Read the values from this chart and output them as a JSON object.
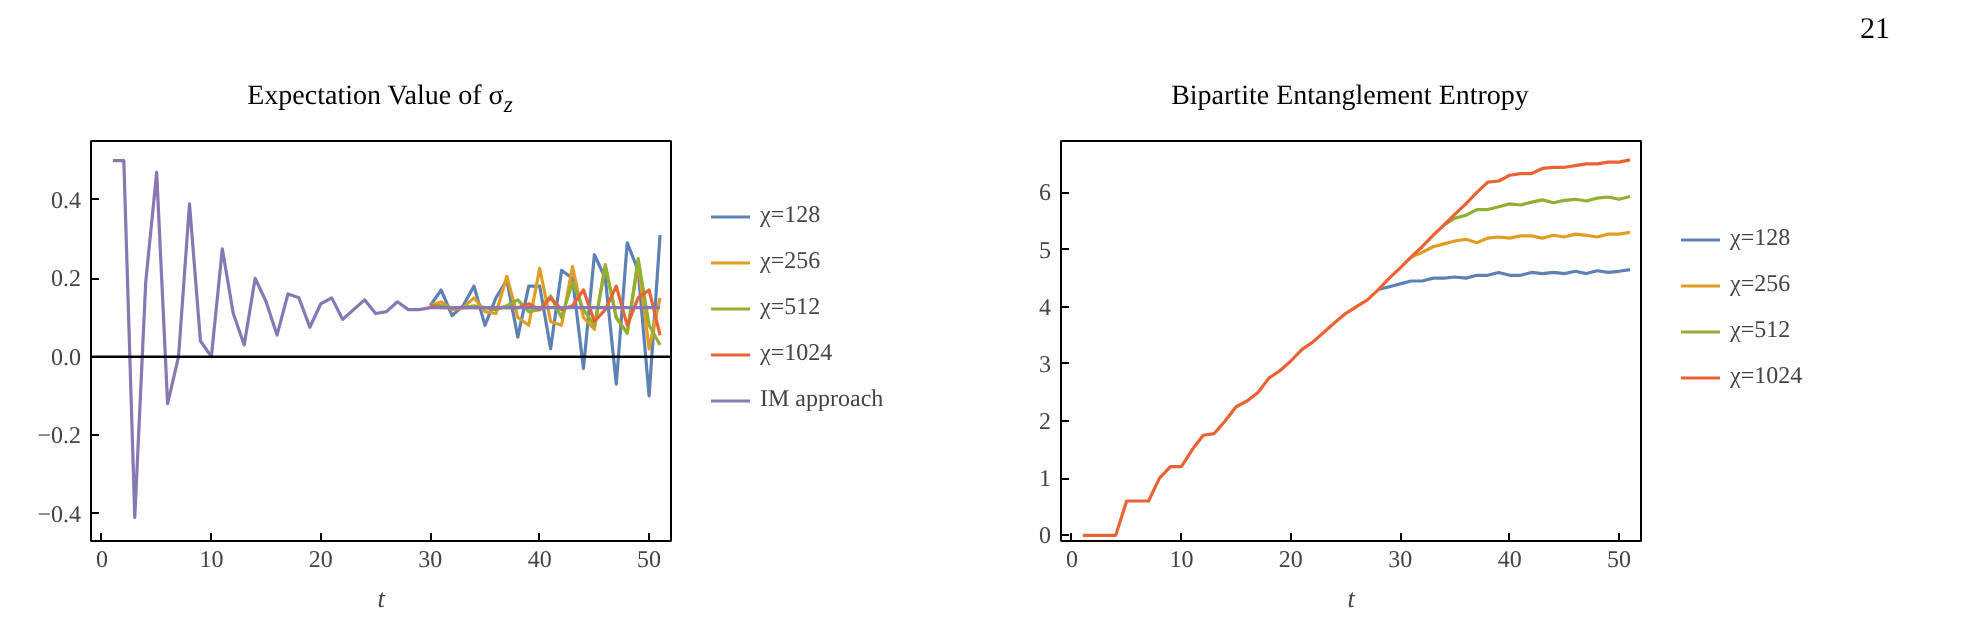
{
  "chart_data": [
    {
      "type": "line",
      "title": "Expectation Value of σ$_{z}$",
      "xlabel": "t",
      "x": [
        1,
        2,
        3,
        4,
        5,
        6,
        7,
        8,
        9,
        10,
        11,
        12,
        13,
        14,
        15,
        16,
        17,
        18,
        19,
        20,
        21,
        22,
        23,
        24,
        25,
        26,
        27,
        28,
        29,
        30,
        31,
        32,
        33,
        34,
        35,
        36,
        37,
        38,
        39,
        40,
        41,
        42,
        43,
        44,
        45,
        46,
        47,
        48,
        49,
        50,
        51
      ],
      "xlim": [
        -1,
        52
      ],
      "ylim": [
        -0.47,
        0.55
      ],
      "xticks": [
        0,
        10,
        20,
        30,
        40,
        50
      ],
      "yticks": [
        -0.4,
        -0.2,
        {
          "value": 0,
          "label": "0.0"
        },
        0.2,
        0.4
      ],
      "grid": false,
      "legend": "right",
      "ref_lines": [
        {
          "axis": "y",
          "value": 0,
          "color": "#000000"
        }
      ],
      "series": [
        {
          "name": "χ=128",
          "color": "#5e81b5",
          "values": [
            null,
            null,
            null,
            null,
            null,
            null,
            null,
            null,
            null,
            null,
            null,
            null,
            null,
            null,
            null,
            null,
            null,
            null,
            null,
            null,
            null,
            null,
            null,
            null,
            null,
            null,
            null,
            null,
            null,
            0.13,
            0.17,
            0.105,
            0.13,
            0.18,
            0.08,
            0.15,
            0.195,
            0.05,
            0.18,
            0.18,
            0.02,
            0.22,
            0.2,
            -0.03,
            0.26,
            0.2,
            -0.07,
            0.29,
            0.22,
            -0.1,
            0.31
          ]
        },
        {
          "name": "χ=256",
          "color": "#e19c24",
          "values": [
            null,
            null,
            null,
            null,
            null,
            null,
            null,
            null,
            null,
            null,
            null,
            null,
            null,
            null,
            null,
            null,
            null,
            null,
            null,
            null,
            null,
            null,
            null,
            null,
            null,
            null,
            null,
            null,
            null,
            0.13,
            0.14,
            0.12,
            0.125,
            0.15,
            0.115,
            0.11,
            0.205,
            0.1,
            0.08,
            0.225,
            0.09,
            0.08,
            0.23,
            0.1,
            0.07,
            0.235,
            0.1,
            0.06,
            0.24,
            0.02,
            0.15
          ]
        },
        {
          "name": "χ=512",
          "color": "#8fb032",
          "values": [
            null,
            null,
            null,
            null,
            null,
            null,
            null,
            null,
            null,
            null,
            null,
            null,
            null,
            null,
            null,
            null,
            null,
            null,
            null,
            null,
            null,
            null,
            null,
            null,
            null,
            null,
            null,
            null,
            null,
            0.13,
            0.13,
            0.125,
            0.125,
            0.13,
            0.125,
            0.12,
            0.13,
            0.145,
            0.115,
            0.12,
            0.155,
            0.1,
            0.19,
            0.12,
            0.08,
            0.23,
            0.1,
            0.06,
            0.25,
            0.08,
            0.03
          ]
        },
        {
          "name": "χ=1024",
          "color": "#eb6235",
          "values": [
            null,
            null,
            null,
            null,
            null,
            null,
            null,
            null,
            null,
            null,
            null,
            null,
            null,
            null,
            null,
            null,
            null,
            null,
            null,
            null,
            null,
            null,
            null,
            null,
            null,
            null,
            null,
            null,
            null,
            0.13,
            0.125,
            0.125,
            0.125,
            0.125,
            0.125,
            0.125,
            0.125,
            0.125,
            0.135,
            0.12,
            0.15,
            0.12,
            0.13,
            0.17,
            0.09,
            0.12,
            0.18,
            0.08,
            0.15,
            0.17,
            0.055
          ]
        },
        {
          "name": "IM approach",
          "color": "#8778b3",
          "values": [
            0.5,
            0.5,
            -0.41,
            0.19,
            0.47,
            -0.12,
            0.0,
            0.39,
            0.04,
            0.0,
            0.275,
            0.11,
            0.03,
            0.2,
            0.14,
            0.055,
            0.16,
            0.15,
            0.075,
            0.135,
            0.15,
            0.095,
            0.12,
            0.145,
            0.11,
            0.115,
            0.14,
            0.12,
            0.12,
            0.125,
            0.125,
            0.125,
            0.125,
            0.125,
            0.125,
            0.125,
            0.125,
            0.125,
            0.125,
            0.125,
            0.125,
            0.125,
            0.125,
            0.125,
            0.125,
            0.125,
            0.125,
            0.125,
            0.125,
            0.125,
            0.125
          ]
        }
      ]
    },
    {
      "type": "line",
      "title": "Bipartite Entanglement Entropy",
      "xlabel": "t",
      "annotations": [
        "21"
      ],
      "x": [
        1,
        2,
        3,
        4,
        5,
        6,
        7,
        8,
        9,
        10,
        11,
        12,
        13,
        14,
        15,
        16,
        17,
        18,
        19,
        20,
        21,
        22,
        23,
        24,
        25,
        26,
        27,
        28,
        29,
        30,
        31,
        32,
        33,
        34,
        35,
        36,
        37,
        38,
        39,
        40,
        41,
        42,
        43,
        44,
        45,
        46,
        47,
        48,
        49,
        50,
        51
      ],
      "xlim": [
        -1,
        52
      ],
      "ylim": [
        -0.1,
        6.9
      ],
      "xticks": [
        0,
        10,
        20,
        30,
        40,
        50
      ],
      "yticks": [
        0,
        1,
        2,
        3,
        4,
        5,
        6
      ],
      "grid": false,
      "legend": "right",
      "series": [
        {
          "name": "χ=128",
          "color": "#5e81b5",
          "values": [
            null,
            null,
            null,
            null,
            null,
            null,
            null,
            null,
            null,
            null,
            null,
            null,
            null,
            null,
            null,
            null,
            null,
            null,
            null,
            null,
            null,
            null,
            null,
            null,
            null,
            null,
            null,
            4.3,
            4.35,
            4.4,
            4.45,
            4.45,
            4.5,
            4.5,
            4.52,
            4.5,
            4.55,
            4.55,
            4.6,
            4.55,
            4.55,
            4.6,
            4.58,
            4.6,
            4.58,
            4.62,
            4.58,
            4.63,
            4.6,
            4.62,
            4.65
          ]
        },
        {
          "name": "χ=256",
          "color": "#e19c24",
          "values": [
            null,
            null,
            null,
            null,
            null,
            null,
            null,
            null,
            null,
            null,
            null,
            null,
            null,
            null,
            null,
            null,
            null,
            null,
            null,
            null,
            null,
            null,
            null,
            null,
            null,
            null,
            null,
            null,
            null,
            null,
            4.87,
            4.95,
            5.05,
            5.1,
            5.15,
            5.18,
            5.12,
            5.2,
            5.22,
            5.2,
            5.24,
            5.24,
            5.2,
            5.25,
            5.22,
            5.27,
            5.25,
            5.22,
            5.27,
            5.27,
            5.3
          ]
        },
        {
          "name": "χ=512",
          "color": "#8fb032",
          "values": [
            null,
            null,
            null,
            null,
            null,
            null,
            null,
            null,
            null,
            null,
            null,
            null,
            null,
            null,
            null,
            null,
            null,
            null,
            null,
            null,
            null,
            null,
            null,
            null,
            null,
            null,
            null,
            null,
            null,
            null,
            null,
            null,
            null,
            5.43,
            5.55,
            5.6,
            5.7,
            5.7,
            5.75,
            5.8,
            5.78,
            5.83,
            5.87,
            5.82,
            5.86,
            5.88,
            5.85,
            5.9,
            5.92,
            5.88,
            5.93
          ]
        },
        {
          "name": "χ=1024",
          "color": "#eb6235",
          "values": [
            0,
            0,
            0,
            0,
            0.6,
            0.6,
            0.6,
            1.0,
            1.2,
            1.2,
            1.5,
            1.75,
            1.78,
            2.0,
            2.25,
            2.35,
            2.5,
            2.75,
            2.88,
            3.05,
            3.25,
            3.38,
            3.55,
            3.72,
            3.88,
            4.0,
            4.12,
            4.3,
            4.5,
            4.68,
            4.87,
            5.05,
            5.25,
            5.43,
            5.62,
            5.8,
            6.0,
            6.18,
            6.2,
            6.3,
            6.33,
            6.33,
            6.42,
            6.44,
            6.44,
            6.47,
            6.5,
            6.5,
            6.53,
            6.53,
            6.57
          ]
        }
      ]
    }
  ]
}
